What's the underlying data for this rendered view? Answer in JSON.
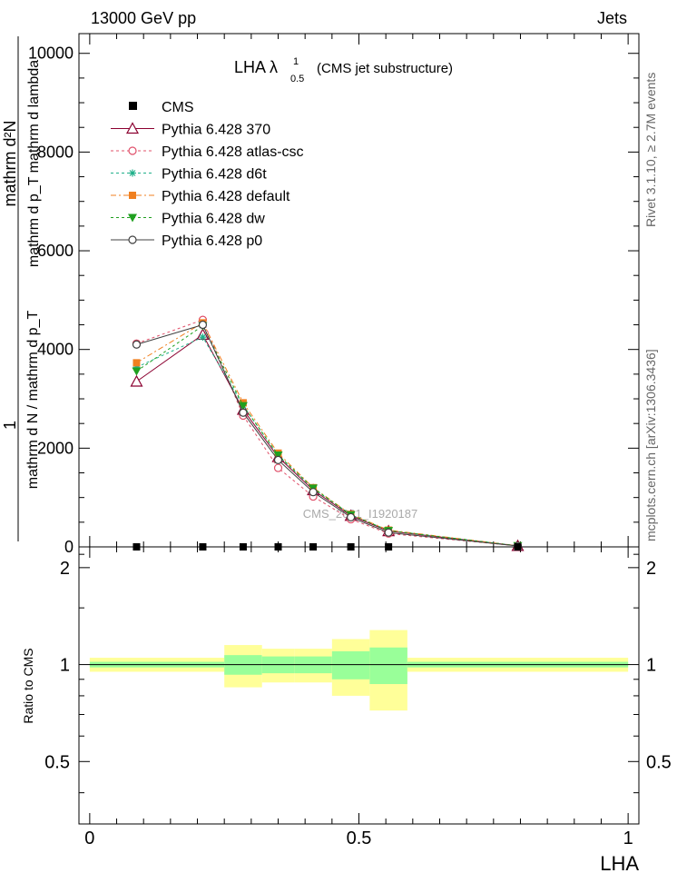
{
  "header": {
    "left": "13000 GeV pp",
    "right": "Jets"
  },
  "side": {
    "rivet": "Rivet 3.1.10, ≥ 2.7M events",
    "mcplots": "mcplots.cern.ch [arXiv:1306.3436]"
  },
  "watermark": "CMS_2021_I1920187",
  "chart_data": [
    {
      "type": "line",
      "panel": "main",
      "title": "LHA λ¹₀.₅ (CMS jet substructure)",
      "title_parts": {
        "main": "LHA λ",
        "sup": "1",
        "sub": "0.5",
        "tail": "(CMS jet substructure)"
      },
      "ylabel_lines": [
        "1",
        "mathrm d N / mathrm d p_T",
        "mathrm d²N",
        "mathrm d p_T mathrm d lambda"
      ],
      "ylabel_text": "1 / mathrm d N / mathrm d p_T  mathrm d²N / mathrm d p_T mathrm d lambda",
      "xlim": [
        -0.02,
        1.02
      ],
      "ylim": [
        0,
        10400
      ],
      "yticks": [
        0,
        2000,
        4000,
        6000,
        8000,
        10000
      ],
      "ytick_labels": [
        "0",
        "2000",
        "4000",
        "6000",
        "8000",
        "10000"
      ],
      "x": [
        0.087,
        0.21,
        0.285,
        0.35,
        0.415,
        0.485,
        0.555,
        0.795
      ],
      "cms": [
        0,
        0,
        0,
        0,
        0,
        0,
        0,
        0
      ],
      "series": [
        {
          "name": "Pythia 6.428 370",
          "color": "#8b0030",
          "marker": "triangle-open",
          "dash": "",
          "values": [
            3350,
            4300,
            2780,
            1820,
            1150,
            630,
            320,
            20
          ]
        },
        {
          "name": "Pythia 6.428 atlas-csc",
          "color": "#e0506a",
          "marker": "circle-open",
          "dash": "3,3",
          "values": [
            4120,
            4600,
            2660,
            1600,
            1020,
            560,
            270,
            20
          ]
        },
        {
          "name": "Pythia 6.428 d6t",
          "color": "#20b08a",
          "marker": "star",
          "dash": "3,3",
          "values": [
            3640,
            4250,
            2860,
            1850,
            1180,
            650,
            330,
            22
          ]
        },
        {
          "name": "Pythia 6.428 default",
          "color": "#f08020",
          "marker": "square",
          "dash": "6,3,2,3",
          "values": [
            3730,
            4540,
            2920,
            1900,
            1200,
            660,
            340,
            22
          ]
        },
        {
          "name": "Pythia 6.428 dw",
          "color": "#20a020",
          "marker": "triangle-down",
          "dash": "3,3",
          "values": [
            3560,
            4480,
            2860,
            1860,
            1190,
            650,
            330,
            22
          ]
        },
        {
          "name": "Pythia 6.428 p0",
          "color": "#404040",
          "marker": "circle-open",
          "dash": "",
          "values": [
            4100,
            4500,
            2720,
            1760,
            1110,
            600,
            290,
            18
          ]
        }
      ],
      "data_series_name": "CMS"
    },
    {
      "type": "area",
      "panel": "ratio",
      "ylabel": "Ratio to CMS",
      "xlabel": "LHA",
      "xlim": [
        -0.02,
        1.02
      ],
      "ylim": [
        0.32,
        2.32
      ],
      "yticks": [
        0.5,
        1,
        2
      ],
      "ytick_labels": [
        "0.5",
        "1",
        "2"
      ],
      "xticks": [
        0,
        0.5,
        1
      ],
      "xtick_labels": [
        "0",
        "0.5",
        "1"
      ],
      "bins": [
        {
          "lo": 0.0,
          "hi": 0.25,
          "stat": 0.02,
          "total": 0.05
        },
        {
          "lo": 0.25,
          "hi": 0.32,
          "stat": 0.07,
          "total": 0.15
        },
        {
          "lo": 0.32,
          "hi": 0.38,
          "stat": 0.06,
          "total": 0.12
        },
        {
          "lo": 0.38,
          "hi": 0.45,
          "stat": 0.06,
          "total": 0.12
        },
        {
          "lo": 0.45,
          "hi": 0.52,
          "stat": 0.1,
          "total": 0.2
        },
        {
          "lo": 0.52,
          "hi": 0.59,
          "stat": 0.13,
          "total": 0.28
        },
        {
          "lo": 0.59,
          "hi": 1.0,
          "stat": 0.02,
          "total": 0.05
        }
      ]
    }
  ]
}
